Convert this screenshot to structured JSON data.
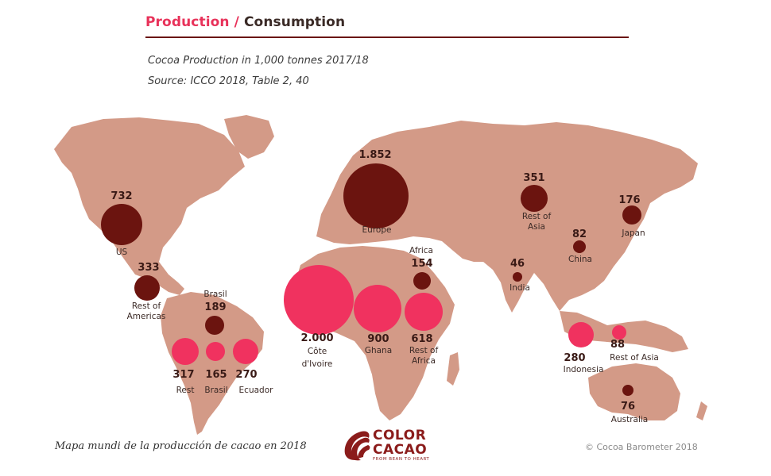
{
  "header": {
    "title_production": "Production",
    "title_separator": " / ",
    "title_consumption": "Consumption",
    "subtitle": "Cocoa Production in 1,000 tonnes 2017/18",
    "source": "Source: ICCO 2018, Table 2, 40"
  },
  "colors": {
    "production": "#f0325f",
    "consumption": "#6b140f",
    "land": "#d39a87",
    "accent": "#e8325a"
  },
  "consumption": [
    {
      "value": "732",
      "label1": "US",
      "label2": ""
    },
    {
      "value": "333",
      "label1": "Rest of",
      "label2": "Americas"
    },
    {
      "value": "189",
      "label1": "Brasil",
      "label2": ""
    },
    {
      "value": "1.852",
      "label1": "Europe",
      "label2": ""
    },
    {
      "value": "154",
      "label1": "Africa",
      "label2": ""
    },
    {
      "value": "351",
      "label1": "Rest of",
      "label2": "Asia"
    },
    {
      "value": "82",
      "label1": "China",
      "label2": ""
    },
    {
      "value": "46",
      "label1": "India",
      "label2": ""
    },
    {
      "value": "176",
      "label1": "Japan",
      "label2": ""
    },
    {
      "value": "76",
      "label1": "Australia",
      "label2": ""
    }
  ],
  "production": [
    {
      "value": "317",
      "label1": "Rest",
      "label2": ""
    },
    {
      "value": "165",
      "label1": "Brasil",
      "label2": ""
    },
    {
      "value": "270",
      "label1": "Ecuador",
      "label2": ""
    },
    {
      "value": "2.000",
      "label1": "Côte",
      "label2": "d'Ivoire"
    },
    {
      "value": "900",
      "label1": "Ghana",
      "label2": ""
    },
    {
      "value": "618",
      "label1": "Rest of",
      "label2": "Africa"
    },
    {
      "value": "280",
      "label1": "Indonesia",
      "label2": ""
    },
    {
      "value": "88",
      "label1": "Rest of Asia",
      "label2": ""
    }
  ],
  "footer": {
    "caption": "Mapa mundi de la producción de cacao en 2018",
    "copyright": "© Cocoa Barometer 2018",
    "logo_line1": "COLOR",
    "logo_line2": "CACAO",
    "logo_tagline": "FROM BEAN TO HEART"
  }
}
